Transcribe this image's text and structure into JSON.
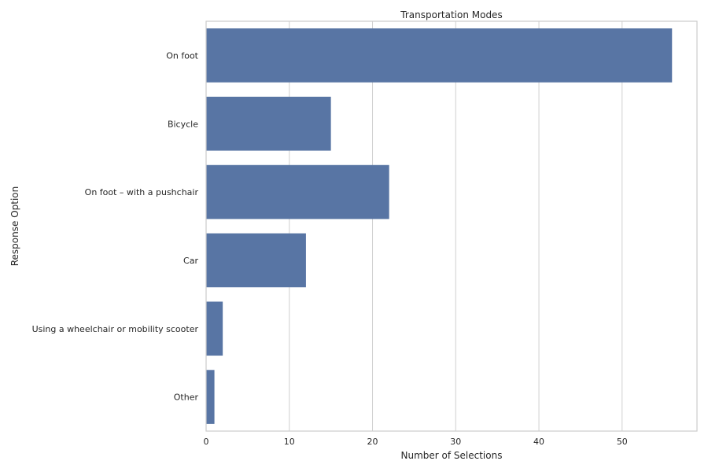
{
  "chart_data": {
    "type": "bar",
    "orientation": "horizontal",
    "title": "Transportation Modes",
    "xlabel": "Number of Selections",
    "ylabel": "Response Option",
    "categories": [
      "On foot",
      "Bicycle",
      "On foot – with a pushchair",
      "Car",
      "Using a wheelchair or mobility scooter",
      "Other"
    ],
    "values": [
      56,
      15,
      22,
      12,
      2,
      1
    ],
    "xlim": [
      0,
      59
    ],
    "xticks": [
      0,
      10,
      20,
      30,
      40,
      50
    ],
    "grid": "vertical",
    "legend": "none",
    "bar_color": "#5875a4",
    "grid_color": "#d0d0d0",
    "frame_color": "#cccccc"
  }
}
